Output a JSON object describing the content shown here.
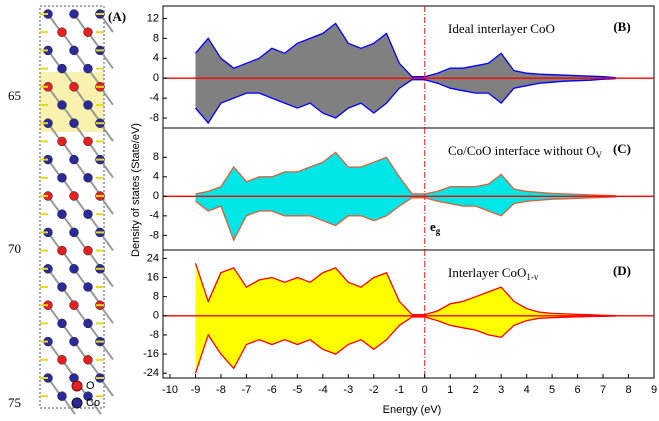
{
  "structure": {
    "label": "(A)",
    "legend": [
      "O",
      "Co"
    ],
    "side_labels": [
      "65",
      "70",
      "75"
    ]
  },
  "chart_data": [
    {
      "type": "area",
      "panel_label": "(B)",
      "annotation": {
        "text": "Ideal interlayer CoO"
      },
      "ylabel": "Density of states (State/eV)",
      "xlim": [
        -10,
        9
      ],
      "ylim": [
        -10,
        14.5
      ],
      "yticks": [
        -8,
        -4,
        0,
        4,
        8,
        12
      ],
      "x": [
        -9,
        -8.5,
        -8,
        -7.5,
        -7,
        -6.5,
        -6,
        -5.5,
        -5,
        -4.5,
        -4,
        -3.5,
        -3,
        -2.5,
        -2,
        -1.5,
        -1,
        -0.5,
        0,
        0.5,
        1,
        1.5,
        2,
        2.5,
        3,
        3.5,
        4,
        4.5,
        5,
        5.5,
        6,
        6.5,
        7,
        7.5
      ],
      "fill": "#808080",
      "series": [
        {
          "color": "#0000ff",
          "values": [
            5,
            8,
            4,
            2,
            3,
            4,
            6,
            5,
            7,
            8,
            9,
            11,
            7,
            6,
            7,
            9,
            3,
            0.3,
            0.3,
            1,
            2,
            2,
            2.5,
            3,
            5,
            1.5,
            1,
            0.8,
            0.7,
            0.6,
            0.5,
            0.4,
            0.3,
            0.1
          ]
        },
        {
          "color": "#0000ff",
          "values": [
            -6,
            -9,
            -5,
            -4,
            -3,
            -3,
            -4,
            -5,
            -6,
            -5,
            -7,
            -8,
            -6,
            -5,
            -7,
            -5,
            -2,
            -0.3,
            -0.3,
            -1,
            -2,
            -2.5,
            -3,
            -3,
            -5,
            -2,
            -1.5,
            -1,
            -0.8,
            -0.6,
            -0.5,
            -0.4,
            -0.2,
            -0.1
          ]
        }
      ]
    },
    {
      "type": "area",
      "panel_label": "(C)",
      "annotation": {
        "text": "Co/CoO interface without O",
        "sub": "V"
      },
      "note": {
        "text": "e",
        "sub": "g"
      },
      "xlim": [
        -10,
        9
      ],
      "ylim": [
        -11,
        14
      ],
      "yticks": [
        -8,
        -4,
        0,
        4,
        8
      ],
      "x": [
        -9,
        -8.5,
        -8,
        -7.5,
        -7,
        -6.5,
        -6,
        -5.5,
        -5,
        -4.5,
        -4,
        -3.5,
        -3,
        -2.5,
        -2,
        -1.5,
        -1,
        -0.5,
        0,
        0.5,
        1,
        1.5,
        2,
        2.5,
        3,
        3.5,
        4,
        4.5,
        5,
        5.5,
        6,
        6.5,
        7,
        7.5
      ],
      "fill": "#00e5e5",
      "series": [
        {
          "color": "#e0603a",
          "values": [
            0.5,
            1,
            2,
            6,
            3,
            4,
            4,
            5,
            5,
            6,
            7,
            9,
            6,
            6,
            7,
            8,
            4,
            0.5,
            0.5,
            1,
            2,
            2,
            2,
            2.5,
            4.5,
            1.5,
            1,
            0.8,
            0.6,
            0.5,
            0.4,
            0.3,
            0.2,
            0.1
          ]
        },
        {
          "color": "#e0603a",
          "values": [
            -1,
            -3,
            -2,
            -9,
            -4,
            -3,
            -3,
            -4,
            -4,
            -4,
            -5,
            -6,
            -4,
            -4,
            -5,
            -4,
            -2,
            -0.3,
            -0.3,
            -1,
            -1.5,
            -2,
            -2,
            -3,
            -4,
            -1.5,
            -1,
            -0.8,
            -0.6,
            -0.5,
            -0.4,
            -0.3,
            -0.2,
            -0.1
          ]
        }
      ]
    },
    {
      "type": "area",
      "panel_label": "(D)",
      "annotation": {
        "text": "Interlayer CoO",
        "sub": "1-v"
      },
      "xlabel": "Energy (eV)",
      "xlim": [
        -10,
        9
      ],
      "ylim": [
        -26,
        27.5
      ],
      "yticks": [
        -24,
        -16,
        -8,
        0,
        8,
        16,
        24
      ],
      "xticks": [
        -10,
        -9,
        -8,
        -7,
        -6,
        -5,
        -4,
        -3,
        -2,
        -1,
        0,
        1,
        2,
        3,
        4,
        5,
        6,
        7,
        8,
        9
      ],
      "x": [
        -9,
        -8.5,
        -8,
        -7.5,
        -7,
        -6.5,
        -6,
        -5.5,
        -5,
        -4.5,
        -4,
        -3.5,
        -3,
        -2.5,
        -2,
        -1.5,
        -1,
        -0.5,
        0,
        0.5,
        1,
        1.5,
        2,
        2.5,
        3,
        3.5,
        4,
        4.5,
        5,
        5.5,
        6,
        6.5,
        7,
        7.5
      ],
      "fill": "#ffff00",
      "series": [
        {
          "color": "#ff0000",
          "values": [
            22,
            6,
            18,
            20,
            12,
            15,
            16,
            14,
            16,
            14,
            18,
            20,
            14,
            12,
            16,
            18,
            6,
            0.5,
            0.5,
            2,
            5,
            6,
            8,
            10,
            12,
            6,
            3,
            1.5,
            1,
            0.8,
            0.6,
            0.4,
            0.2,
            0.1
          ]
        },
        {
          "color": "#ff0000",
          "values": [
            -24,
            -8,
            -16,
            -22,
            -12,
            -10,
            -12,
            -10,
            -12,
            -10,
            -14,
            -16,
            -12,
            -10,
            -14,
            -10,
            -4,
            -0.5,
            -0.5,
            -2,
            -4,
            -5,
            -6,
            -8,
            -9,
            -4,
            -2,
            -1,
            -0.8,
            -0.6,
            -0.4,
            -0.3,
            -0.2,
            -0.1
          ]
        }
      ]
    }
  ]
}
